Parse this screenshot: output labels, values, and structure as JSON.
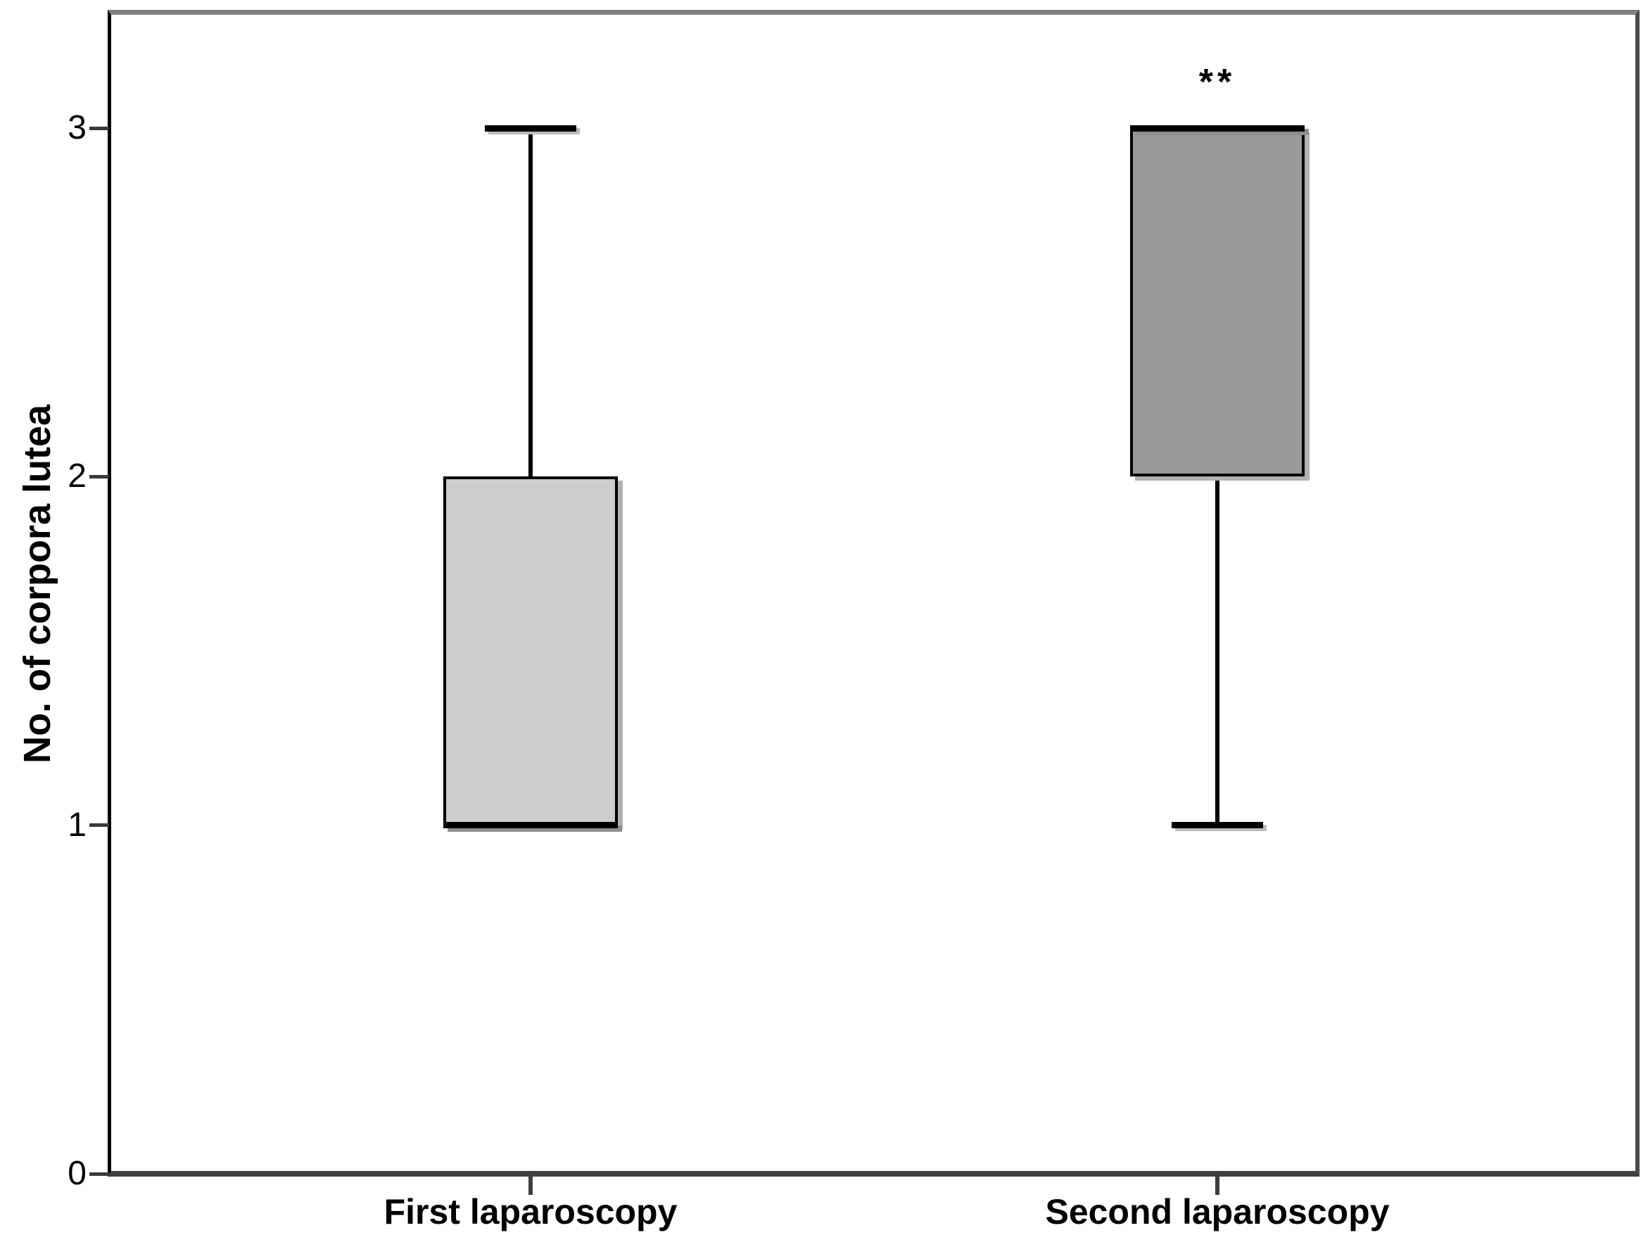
{
  "figure": {
    "background": "#ffffff",
    "frame": {
      "top_color": "#7f7f7f",
      "right_color": "#4a4a4a",
      "bottom_color": "#404040",
      "left_axis_color": "#000000"
    }
  },
  "chart_data": {
    "type": "box",
    "title": "",
    "xlabel": "",
    "ylabel": "No. of corpora lutea",
    "ylim": [
      0,
      3.35
    ],
    "yticks": [
      "0",
      "1",
      "2",
      "3"
    ],
    "grid": false,
    "legend": false,
    "categories": [
      "First laparoscopy",
      "Second laparoscopy"
    ],
    "series": [
      {
        "name": "First laparoscopy",
        "min": 1,
        "q1": 1,
        "median": 1,
        "q3": 2,
        "max": 3,
        "fill": "#cdcdcd",
        "border": "#000000",
        "annotation": ""
      },
      {
        "name": "Second laparoscopy",
        "min": 1,
        "q1": 2,
        "median": 3,
        "q3": 3,
        "max": 3,
        "fill": "#9a9a9a",
        "border": "#000000",
        "annotation": "**"
      }
    ]
  }
}
